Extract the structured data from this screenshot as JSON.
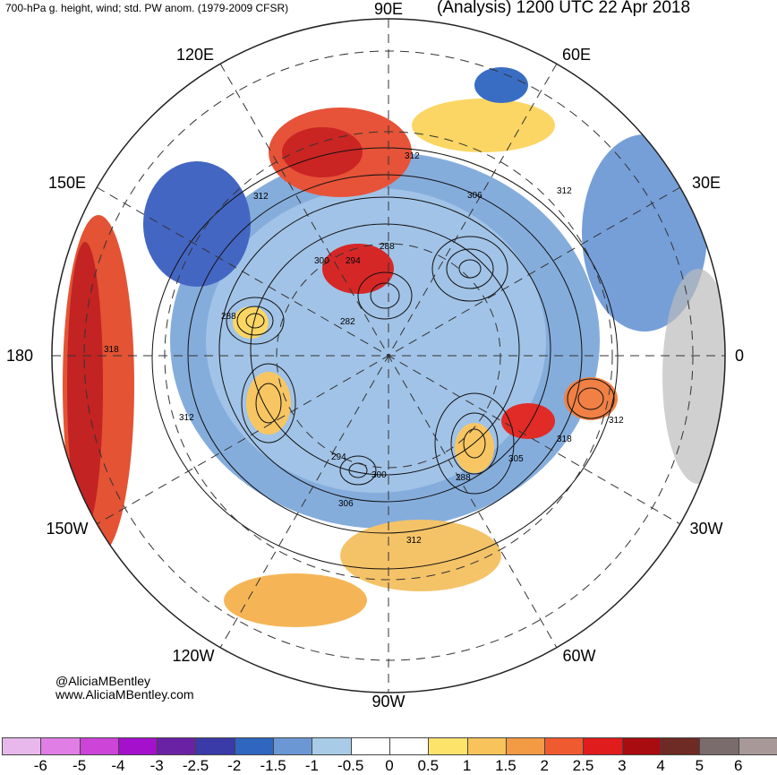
{
  "header": {
    "left_title": "700-hPa g. height, wind; std. PW anom. (1979-2009 CFSR)",
    "right_title": "(Analysis) 1200 UTC 22 Apr 2018"
  },
  "credits": {
    "handle": "@AliciaMBentley",
    "website": "www.AliciaMBentley.com"
  },
  "longitude_labels": [
    {
      "text": "90E",
      "pos": "top"
    },
    {
      "text": "120E",
      "pos": "upper-left"
    },
    {
      "text": "60E",
      "pos": "upper-right"
    },
    {
      "text": "150E",
      "pos": "left-upper"
    },
    {
      "text": "30E",
      "pos": "right-upper"
    },
    {
      "text": "180",
      "pos": "left"
    },
    {
      "text": "0",
      "pos": "right"
    },
    {
      "text": "150W",
      "pos": "left-lower"
    },
    {
      "text": "30W",
      "pos": "right-lower"
    },
    {
      "text": "120W",
      "pos": "lower-left"
    },
    {
      "text": "60W",
      "pos": "lower-right"
    },
    {
      "text": "90W",
      "pos": "bottom"
    }
  ],
  "contour_labels": [
    "312",
    "312",
    "312",
    "306",
    "288",
    "294",
    "300",
    "282",
    "288",
    "318",
    "312",
    "294",
    "300",
    "306",
    "288",
    "305",
    "318",
    "312",
    "312"
  ],
  "colorbar": {
    "colors": [
      "#e8b8ec",
      "#e07ee6",
      "#cc44d8",
      "#a410cc",
      "#6a22a4",
      "#3a3aa8",
      "#2e66c0",
      "#6b98d4",
      "#a8cce8",
      "#ffffff",
      "#ffffff",
      "#fde36a",
      "#f7c35a",
      "#f39a44",
      "#f05a30",
      "#e01c1c",
      "#a80c10",
      "#6e2a24",
      "#7a6c6c",
      "#a89898"
    ],
    "tick_labels": [
      "-6",
      "-5",
      "-4",
      "-3",
      "-2.5",
      "-2",
      "-1.5",
      "-1",
      "-0.5",
      "0",
      "0.5",
      "1",
      "1.5",
      "2",
      "2.5",
      "3",
      "4",
      "5",
      "6"
    ]
  }
}
